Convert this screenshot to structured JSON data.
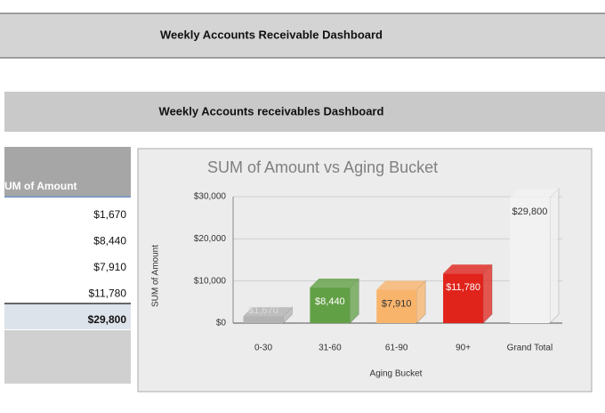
{
  "header": {
    "title": "Weekly Accounts Receivable Dashboard"
  },
  "banner": {
    "title": "Weekly Accounts receivables Dashboard"
  },
  "table": {
    "header": "UM of Amount",
    "rows": [
      "$1,670",
      "$8,440",
      "$7,910",
      "$11,780"
    ],
    "total": "$29,800"
  },
  "chart_data": {
    "type": "bar",
    "title": "SUM of Amount vs Aging Bucket",
    "x_label": "Aging Bucket",
    "y_label": "SUM of Amount",
    "categories": [
      "0-30",
      "31-60",
      "61-90",
      "90+",
      "Grand Total"
    ],
    "values": [
      1670,
      8440,
      7910,
      11780,
      29800
    ],
    "value_labels": [
      "$1,670",
      "$8,440",
      "$7,910",
      "$11,780",
      "$29,800"
    ],
    "colors": [
      "#b3b3b3",
      "#62a046",
      "#f9b46c",
      "#e0231b",
      "#f2f2f2"
    ],
    "label_colors": [
      "#dcdcdc",
      "#ffffff",
      "#333333",
      "#ffffff",
      "#333333"
    ],
    "ylim": [
      0,
      30000
    ],
    "yticks": [
      {
        "value": 0,
        "label": "$0"
      },
      {
        "value": 10000,
        "label": "$10,000"
      },
      {
        "value": 20000,
        "label": "$20,000"
      },
      {
        "value": 30000,
        "label": "$30,000"
      }
    ],
    "grid": true
  }
}
